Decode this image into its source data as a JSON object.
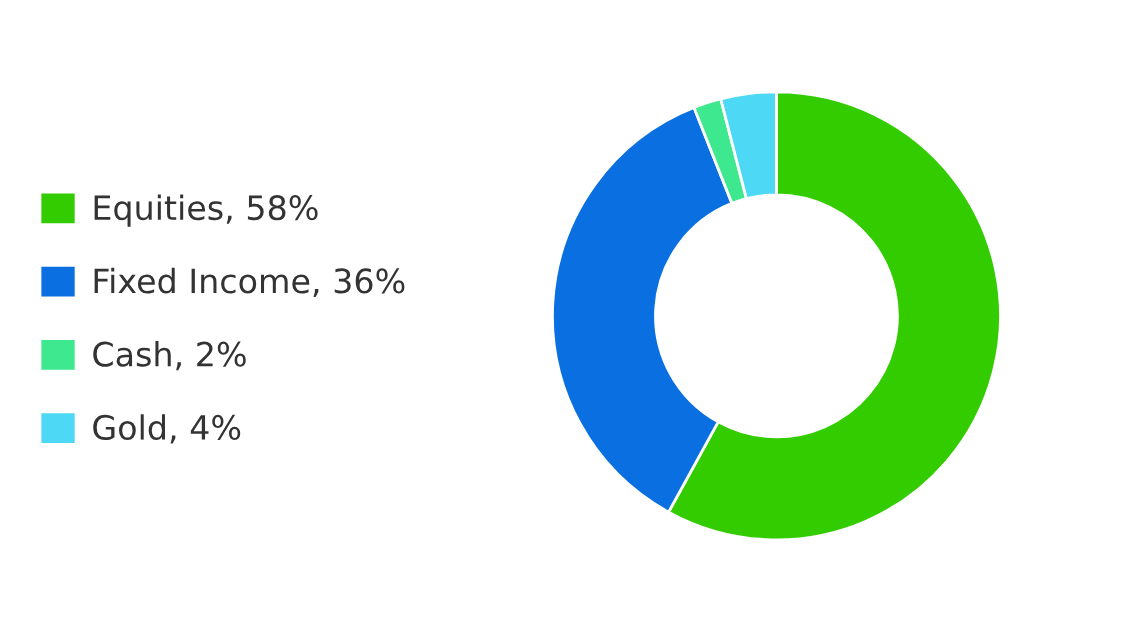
{
  "chart_data": {
    "type": "donut",
    "categories": [
      "Equities, 58%",
      "Fixed Income, 36%",
      "Cash, 2%",
      "Gold, 4%"
    ],
    "values": [
      58,
      36,
      2,
      4
    ],
    "colors": [
      "#33cc00",
      "#0a6fe0",
      "#3de88f",
      "#4dd9f5"
    ],
    "legend": "left"
  }
}
